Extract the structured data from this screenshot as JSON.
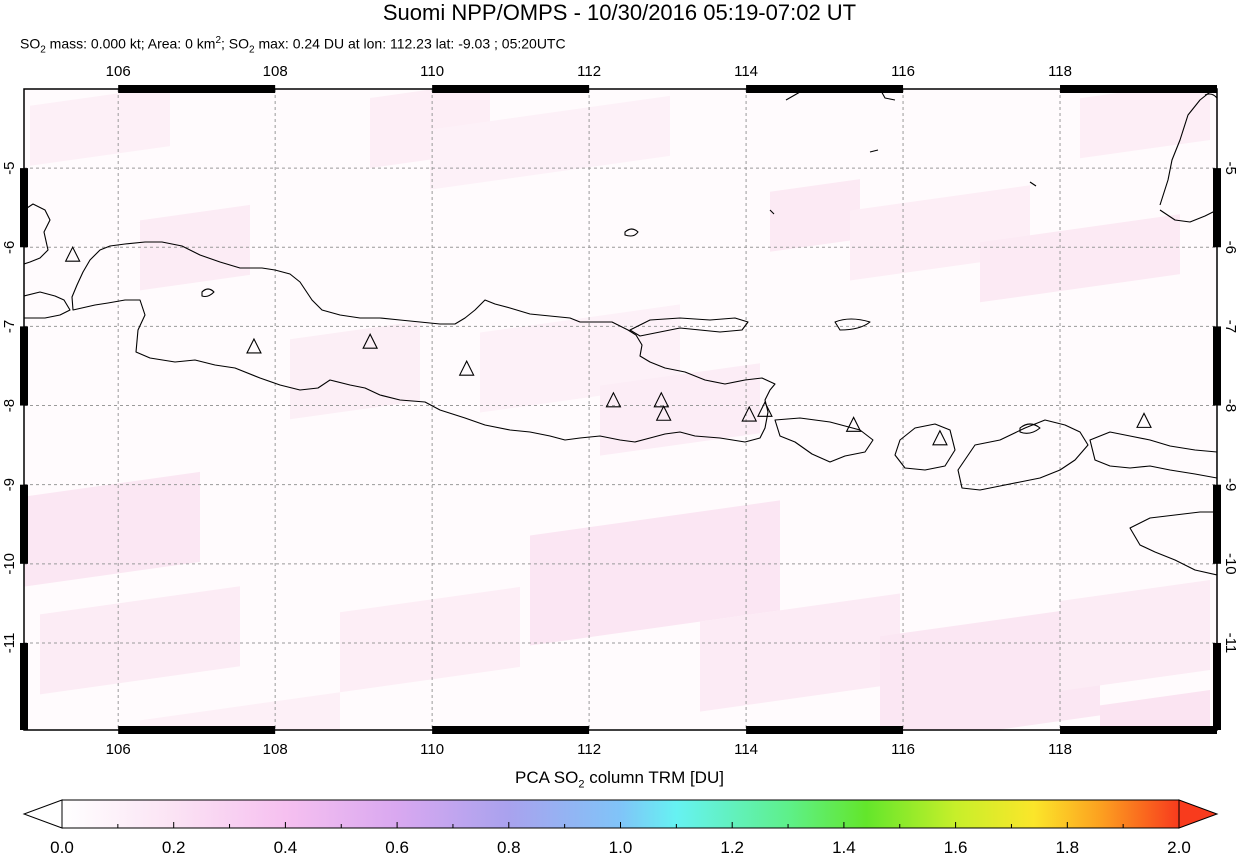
{
  "header": {
    "title": "Suomi NPP/OMPS - 10/30/2016 05:19-07:02 UT",
    "subtitle_parts": {
      "so2_mass_prefix": "SO",
      "so2_sub": "2",
      "so2_mass_text": " mass: 0.000 kt; Area: 0 km",
      "area_sup": "2",
      "so2_max_prefix": "; SO",
      "so2_max_sub": "2",
      "so2_max_text": " max: 0.24 DU at lon: 112.23 lat: -9.03 ; 05:20UTC"
    }
  },
  "map": {
    "lon_range": [
      104.8,
      120.0
    ],
    "lat_range": [
      -12.1,
      -4.0
    ],
    "lon_ticks": [
      "106",
      "108",
      "110",
      "112",
      "114",
      "116",
      "118"
    ],
    "lon_tick_values": [
      106,
      108,
      110,
      112,
      114,
      116,
      118
    ],
    "lat_ticks": [
      "-5",
      "-6",
      "-7",
      "-8",
      "-9",
      "-10",
      "-11"
    ],
    "lat_tick_values": [
      -5,
      -6,
      -7,
      -8,
      -9,
      -10,
      -11
    ],
    "volcanoes": [
      {
        "lon": 105.42,
        "lat": -6.1
      },
      {
        "lon": 107.73,
        "lat": -7.26
      },
      {
        "lon": 109.21,
        "lat": -7.2
      },
      {
        "lon": 110.44,
        "lat": -7.54
      },
      {
        "lon": 112.31,
        "lat": -7.94
      },
      {
        "lon": 112.92,
        "lat": -7.94
      },
      {
        "lon": 112.95,
        "lat": -8.11
      },
      {
        "lon": 114.04,
        "lat": -8.12
      },
      {
        "lon": 114.24,
        "lat": -8.06
      },
      {
        "lon": 115.37,
        "lat": -8.25
      },
      {
        "lon": 116.47,
        "lat": -8.42
      },
      {
        "lon": 119.07,
        "lat": -8.2
      }
    ]
  },
  "colorbar": {
    "title_prefix": "PCA SO",
    "title_sub": "2",
    "title_suffix": " column TRM [DU]",
    "ticks": [
      "0.0",
      "0.2",
      "0.4",
      "0.6",
      "0.8",
      "1.0",
      "1.2",
      "1.4",
      "1.6",
      "1.8",
      "2.0"
    ],
    "min": 0.0,
    "max": 2.0,
    "colors": [
      "#ffffff",
      "#fbe3f4",
      "#f6c0f0",
      "#d9a8f0",
      "#a9a2ee",
      "#80c4f8",
      "#66f2f2",
      "#5ef08a",
      "#63e62b",
      "#c7ef2a",
      "#fbe62a",
      "#fca020",
      "#f83b1d"
    ]
  }
}
